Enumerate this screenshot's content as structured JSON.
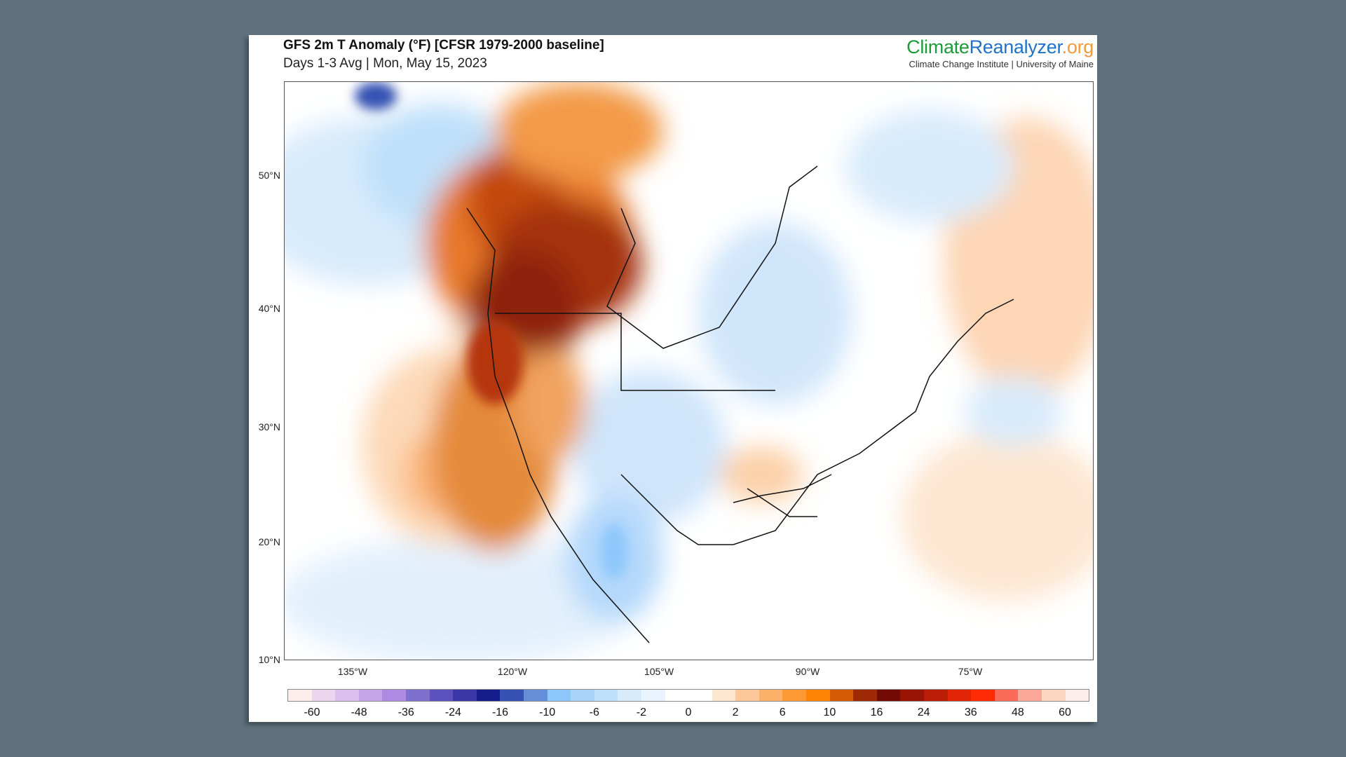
{
  "header": {
    "title": "GFS 2m T Anomaly (°F) [CFSR 1979-2000 baseline]",
    "subtitle": "Days 1-3 Avg | Mon, May 15, 2023"
  },
  "logo": {
    "part1": "Climate",
    "part2": "Reanalyzer",
    "part3": ".org",
    "tagline": "Climate Change Institute | University of Maine"
  },
  "map": {
    "lat_labels": [
      "50°N",
      "40°N",
      "30°N",
      "20°N",
      "10°N"
    ],
    "lon_labels": [
      "135°W",
      "120°W",
      "105°W",
      "90°W",
      "75°W"
    ]
  },
  "colorbar": {
    "labels": [
      "-60",
      "-48",
      "-36",
      "-24",
      "-16",
      "-10",
      "-6",
      "-2",
      "0",
      "2",
      "6",
      "10",
      "16",
      "24",
      "36",
      "48",
      "60"
    ],
    "colors": [
      "#fdeeee",
      "#ebd5ef",
      "#dcbfee",
      "#c8a5ea",
      "#b08ae2",
      "#7f6fcf",
      "#5b52bd",
      "#3a36a6",
      "#151c8c",
      "#3653b3",
      "#648ed8",
      "#8ec8fb",
      "#a9d5fb",
      "#bfe0fa",
      "#d8ebfb",
      "#eaf4fe",
      "#ffffff",
      "#ffffff",
      "#fde6d0",
      "#fdc99a",
      "#fdb06a",
      "#fd9a36",
      "#fd8405",
      "#d45a05",
      "#9e2a05",
      "#740a05",
      "#9a1405",
      "#bb1c05",
      "#e02405",
      "#fc2a05",
      "#fc6a5a",
      "#fca797",
      "#fdd6c1",
      "#fdeeee"
    ]
  }
}
